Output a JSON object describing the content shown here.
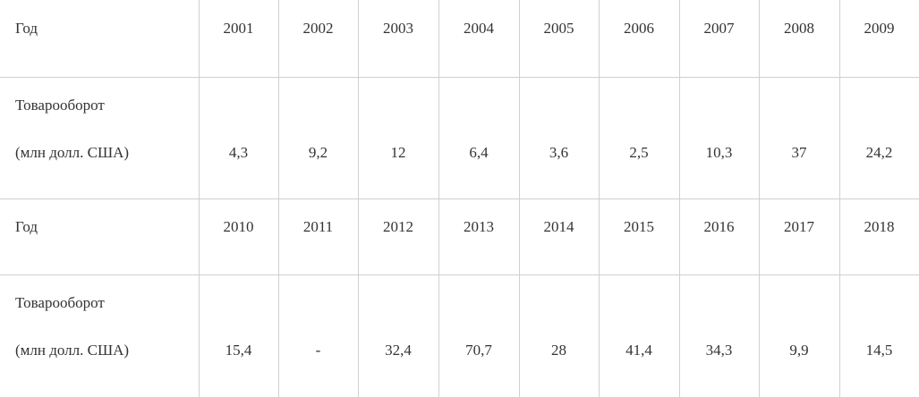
{
  "table": {
    "rows": [
      {
        "label": [
          "Год"
        ],
        "cells": [
          "2001",
          "2002",
          "2003",
          "2004",
          "2005",
          "2006",
          "2007",
          "2008",
          "2009"
        ]
      },
      {
        "label": [
          "Товарооборот",
          "(млн долл. США)"
        ],
        "cells": [
          "4,3",
          "9,2",
          "12",
          "6,4",
          "3,6",
          "2,5",
          "10,3",
          "37",
          "24,2"
        ]
      },
      {
        "label": [
          "Год"
        ],
        "cells": [
          "2010",
          "2011",
          "2012",
          "2013",
          "2014",
          "2015",
          "2016",
          "2017",
          "2018"
        ]
      },
      {
        "label": [
          "Товарооборот",
          "(млн долл. США)"
        ],
        "cells": [
          "15,4",
          "-",
          "32,4",
          "70,7",
          "28",
          "41,4",
          "34,3",
          "9,9",
          "14,5"
        ]
      }
    ]
  }
}
